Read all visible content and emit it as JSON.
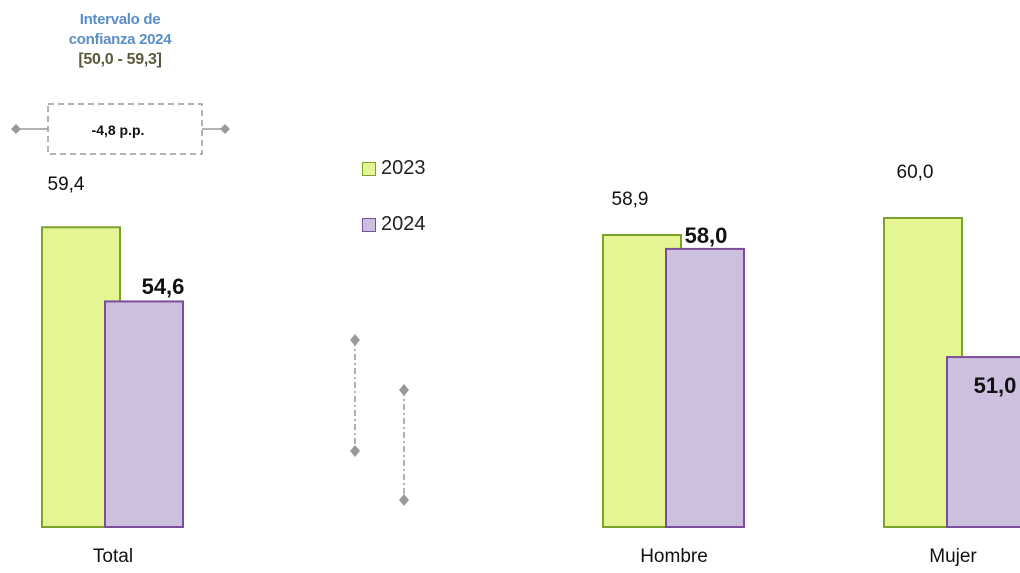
{
  "chart_data": {
    "type": "bar",
    "categories": [
      "Total",
      "Hombre",
      "Mujer"
    ],
    "series": [
      {
        "name": "2023",
        "values": [
          59.4,
          58.9,
          60.0
        ],
        "labels": [
          "59,4",
          "58,9",
          "60,0"
        ],
        "color": "#e6f594",
        "stroke": "#7aa32a"
      },
      {
        "name": "2024",
        "values": [
          54.6,
          58.0,
          51.0
        ],
        "labels": [
          "54,6",
          "58,0",
          "51,0"
        ],
        "color": "#cdbfde",
        "stroke": "#7a4e9a"
      }
    ],
    "annotation": {
      "ci_line1": "Intervalo de",
      "ci_line2": "confianza 2024",
      "ci_range": "[50,0 - 59,3]",
      "difference": "-4,8 p.p."
    },
    "legend_position": "top-center",
    "grid": false,
    "ylim": [
      40,
      62
    ]
  }
}
